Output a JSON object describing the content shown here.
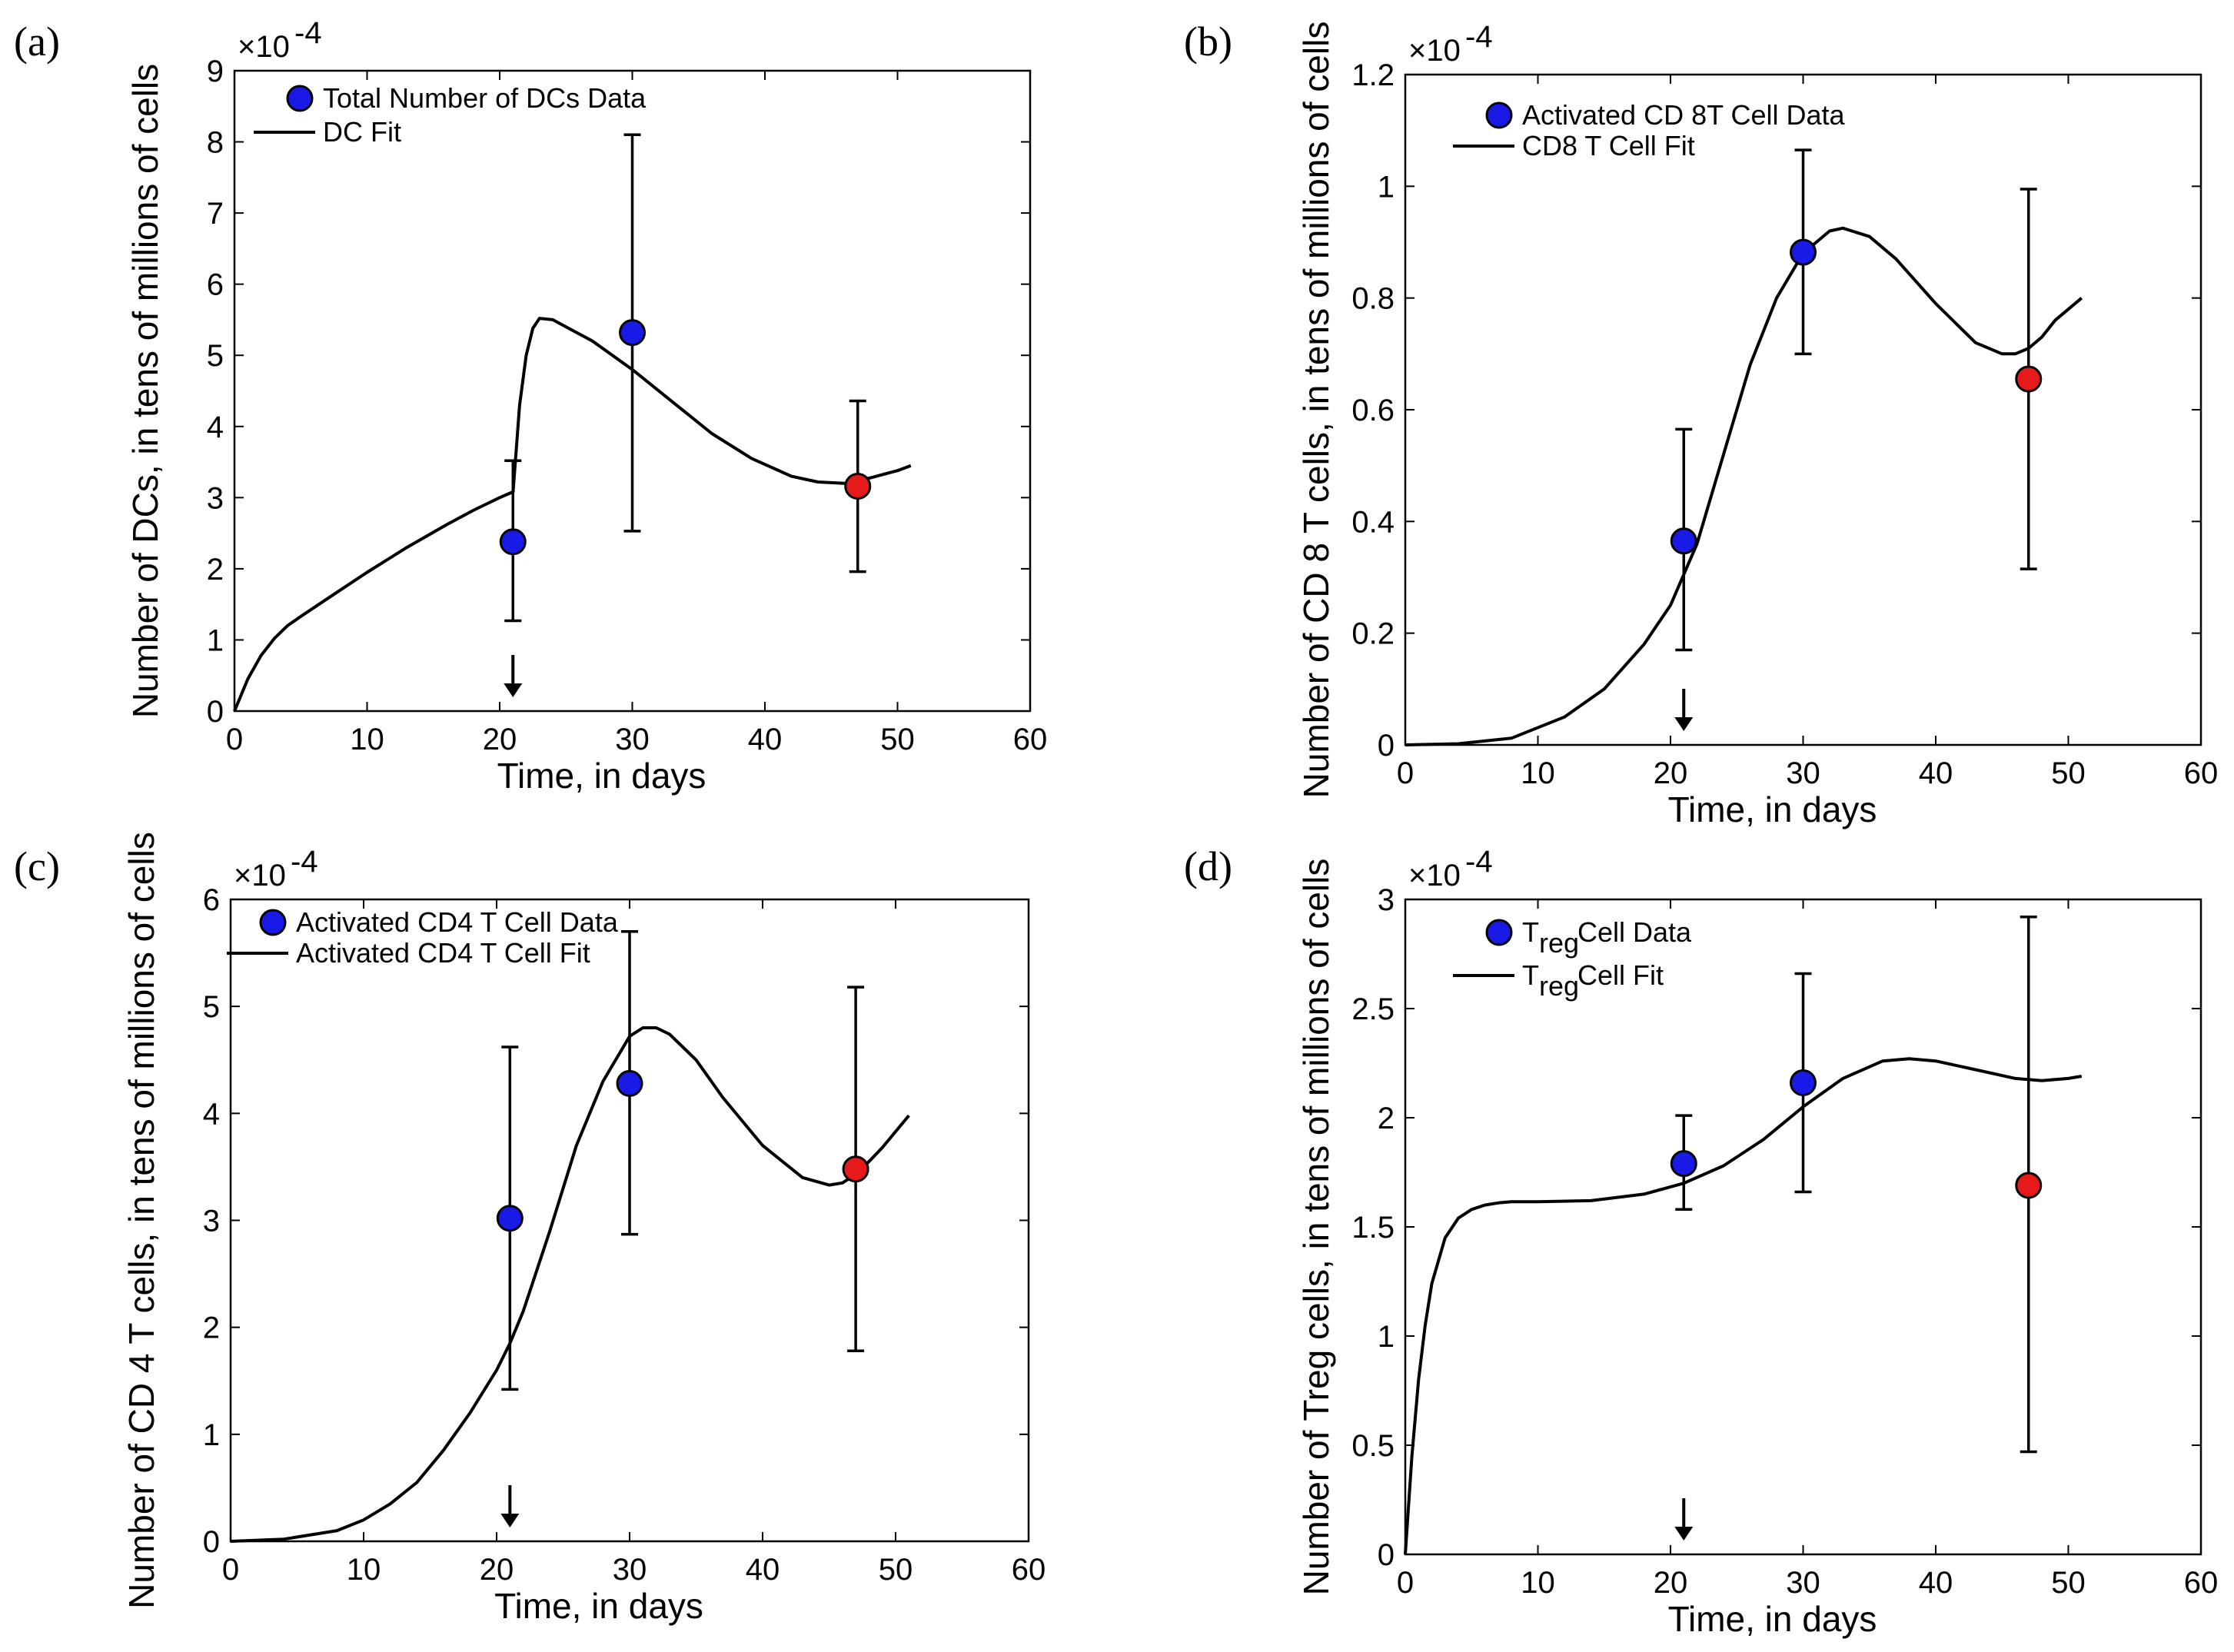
{
  "chart_data": [
    {
      "type": "line",
      "panel_label": "(a)",
      "title": "",
      "xlabel": "Time, in days",
      "ylabel": "Number of DCs, in tens of millions of cells",
      "xlim": [
        0,
        60
      ],
      "ylim": [
        0,
        9
      ],
      "y_scale_exponent": "×10",
      "y_scale_power": "-4",
      "xticks": [
        "0",
        "10",
        "20",
        "30",
        "40",
        "50",
        "60"
      ],
      "yticks": [
        "0",
        "1",
        "2",
        "3",
        "4",
        "5",
        "6",
        "7",
        "8",
        "9"
      ],
      "legend": {
        "placement": "top-left",
        "markers": [
          "Total Number of DCs Data",
          "DC Fit"
        ]
      },
      "fit_line": {
        "name": "DC Fit",
        "x": [
          0,
          1,
          2,
          3,
          4,
          5,
          7,
          10,
          13,
          16,
          18,
          20,
          21,
          21.01,
          21.5,
          22,
          22.5,
          23,
          24,
          25,
          27,
          30,
          33,
          36,
          39,
          42,
          44,
          46,
          48,
          50,
          51
        ],
        "y": [
          0,
          0.45,
          0.78,
          1.02,
          1.2,
          1.33,
          1.58,
          1.95,
          2.3,
          2.62,
          2.82,
          3.0,
          3.08,
          3.08,
          4.3,
          5.0,
          5.38,
          5.52,
          5.5,
          5.4,
          5.2,
          4.8,
          4.35,
          3.9,
          3.55,
          3.3,
          3.22,
          3.2,
          3.28,
          3.38,
          3.45
        ]
      },
      "series": [
        {
          "name": "Total Number of DCs Data",
          "x": [
            21,
            30
          ],
          "y": [
            2.38,
            5.32
          ],
          "err_low": [
            1.27,
            2.53
          ],
          "err_high": [
            3.52,
            8.1
          ],
          "color": "#1a1ae6"
        },
        {
          "name": "",
          "x": [
            47
          ],
          "y": [
            3.16
          ],
          "err_low": [
            1.96
          ],
          "err_high": [
            4.36
          ],
          "color": "#e61a1a"
        }
      ],
      "arrow_at": 21
    },
    {
      "type": "line",
      "panel_label": "(b)",
      "title": "",
      "xlabel": "Time, in days",
      "ylabel": "Number of CD 8 T cells, in tens of millions of cells",
      "xlim": [
        0,
        60
      ],
      "ylim": [
        0,
        1.2
      ],
      "y_scale_exponent": "×10",
      "y_scale_power": "-4",
      "xticks": [
        "0",
        "10",
        "20",
        "30",
        "40",
        "50",
        "60"
      ],
      "yticks": [
        "0",
        "0.2",
        "0.4",
        "0.6",
        "0.8",
        "1",
        "1.2"
      ],
      "legend": {
        "placement": "top-left",
        "markers": [
          "Activated CD 8T Cell Data",
          "CD8 T Cell Fit"
        ]
      },
      "fit_line": {
        "name": "CD8 T Cell Fit",
        "x": [
          0,
          4,
          8,
          12,
          15,
          18,
          20,
          22,
          24,
          26,
          28,
          30,
          32,
          33,
          35,
          37,
          40,
          43,
          45,
          46,
          47,
          48,
          49,
          51
        ],
        "y": [
          0,
          0.002,
          0.012,
          0.05,
          0.1,
          0.18,
          0.25,
          0.36,
          0.52,
          0.68,
          0.8,
          0.88,
          0.92,
          0.925,
          0.91,
          0.87,
          0.79,
          0.72,
          0.7,
          0.7,
          0.71,
          0.73,
          0.76,
          0.8
        ]
      },
      "series": [
        {
          "name": "Activated CD 8T Cell Data",
          "x": [
            21,
            30
          ],
          "y": [
            0.365,
            0.882
          ],
          "err_low": [
            0.17,
            0.7
          ],
          "err_high": [
            0.565,
            1.065
          ],
          "color": "#1a1ae6"
        },
        {
          "name": "",
          "x": [
            47
          ],
          "y": [
            0.655
          ],
          "err_low": [
            0.315
          ],
          "err_high": [
            0.995
          ],
          "color": "#e61a1a"
        }
      ],
      "arrow_at": 21
    },
    {
      "type": "line",
      "panel_label": "(c)",
      "title": "",
      "xlabel": "Time, in days",
      "ylabel": "Number of CD 4 T cells, in tens of millions of cells",
      "xlim": [
        0,
        60
      ],
      "ylim": [
        0,
        6
      ],
      "y_scale_exponent": "×10",
      "y_scale_power": "-4",
      "xticks": [
        "0",
        "10",
        "20",
        "30",
        "40",
        "50",
        "60"
      ],
      "yticks": [
        "0",
        "1",
        "2",
        "3",
        "4",
        "5",
        "6"
      ],
      "legend": {
        "placement": "top-left",
        "markers": [
          "Activated CD4 T Cell Data",
          "Activated CD4 T Cell Fit"
        ]
      },
      "fit_line": {
        "name": "Activated CD4 T Cell Fit",
        "x": [
          0,
          4,
          8,
          10,
          12,
          14,
          16,
          18,
          20,
          21,
          22,
          24,
          26,
          28,
          30,
          31,
          32,
          33,
          35,
          37,
          40,
          43,
          45,
          46,
          47,
          48,
          49,
          51
        ],
        "y": [
          0,
          0.02,
          0.1,
          0.2,
          0.35,
          0.55,
          0.85,
          1.2,
          1.6,
          1.85,
          2.15,
          2.9,
          3.7,
          4.3,
          4.72,
          4.8,
          4.8,
          4.74,
          4.5,
          4.15,
          3.7,
          3.4,
          3.33,
          3.35,
          3.43,
          3.55,
          3.68,
          3.98
        ]
      },
      "series": [
        {
          "name": "Activated CD4 T Cell Data",
          "x": [
            21,
            30
          ],
          "y": [
            3.02,
            4.28
          ],
          "err_low": [
            1.42,
            2.87
          ],
          "err_high": [
            4.62,
            5.7
          ],
          "color": "#1a1ae6"
        },
        {
          "name": "",
          "x": [
            47
          ],
          "y": [
            3.48
          ],
          "err_low": [
            1.78
          ],
          "err_high": [
            5.18
          ],
          "color": "#e61a1a"
        }
      ],
      "arrow_at": 21
    },
    {
      "type": "line",
      "panel_label": "(d)",
      "title": "",
      "xlabel": "Time, in days",
      "ylabel": "Number of Treg cells, in tens of millions of cells",
      "xlim": [
        0,
        60
      ],
      "ylim": [
        0,
        3
      ],
      "y_scale_exponent": "×10",
      "y_scale_power": "-4",
      "xticks": [
        "0",
        "10",
        "20",
        "30",
        "40",
        "50",
        "60"
      ],
      "yticks": [
        "0",
        "0.5",
        "1",
        "1.5",
        "2",
        "2.5",
        "3"
      ],
      "legend": {
        "placement": "top-left",
        "markers": [
          "Cell Data",
          "Cell Fit"
        ]
      },
      "legend_subscript_base": "T",
      "legend_subscript": "reg",
      "fit_line": {
        "name": "Treg Cell Fit",
        "x": [
          0,
          0.5,
          1,
          1.5,
          2,
          3,
          4,
          5,
          6,
          7,
          8,
          10,
          14,
          18,
          21,
          24,
          27,
          30,
          33,
          36,
          38,
          40,
          43,
          46,
          48,
          50,
          51
        ],
        "y": [
          0,
          0.45,
          0.8,
          1.05,
          1.24,
          1.45,
          1.54,
          1.58,
          1.6,
          1.61,
          1.615,
          1.615,
          1.62,
          1.65,
          1.7,
          1.78,
          1.9,
          2.05,
          2.18,
          2.26,
          2.27,
          2.26,
          2.22,
          2.18,
          2.17,
          2.18,
          2.19
        ]
      },
      "series": [
        {
          "name": "Cell Data",
          "x": [
            21,
            30
          ],
          "y": [
            1.79,
            2.16
          ],
          "err_low": [
            1.58,
            1.66
          ],
          "err_high": [
            2.01,
            2.66
          ],
          "color": "#1a1ae6"
        },
        {
          "name": "",
          "x": [
            47
          ],
          "y": [
            1.69
          ],
          "err_low": [
            0.47
          ],
          "err_high": [
            2.92
          ],
          "color": "#e61a1a"
        }
      ],
      "arrow_at": 21
    }
  ]
}
